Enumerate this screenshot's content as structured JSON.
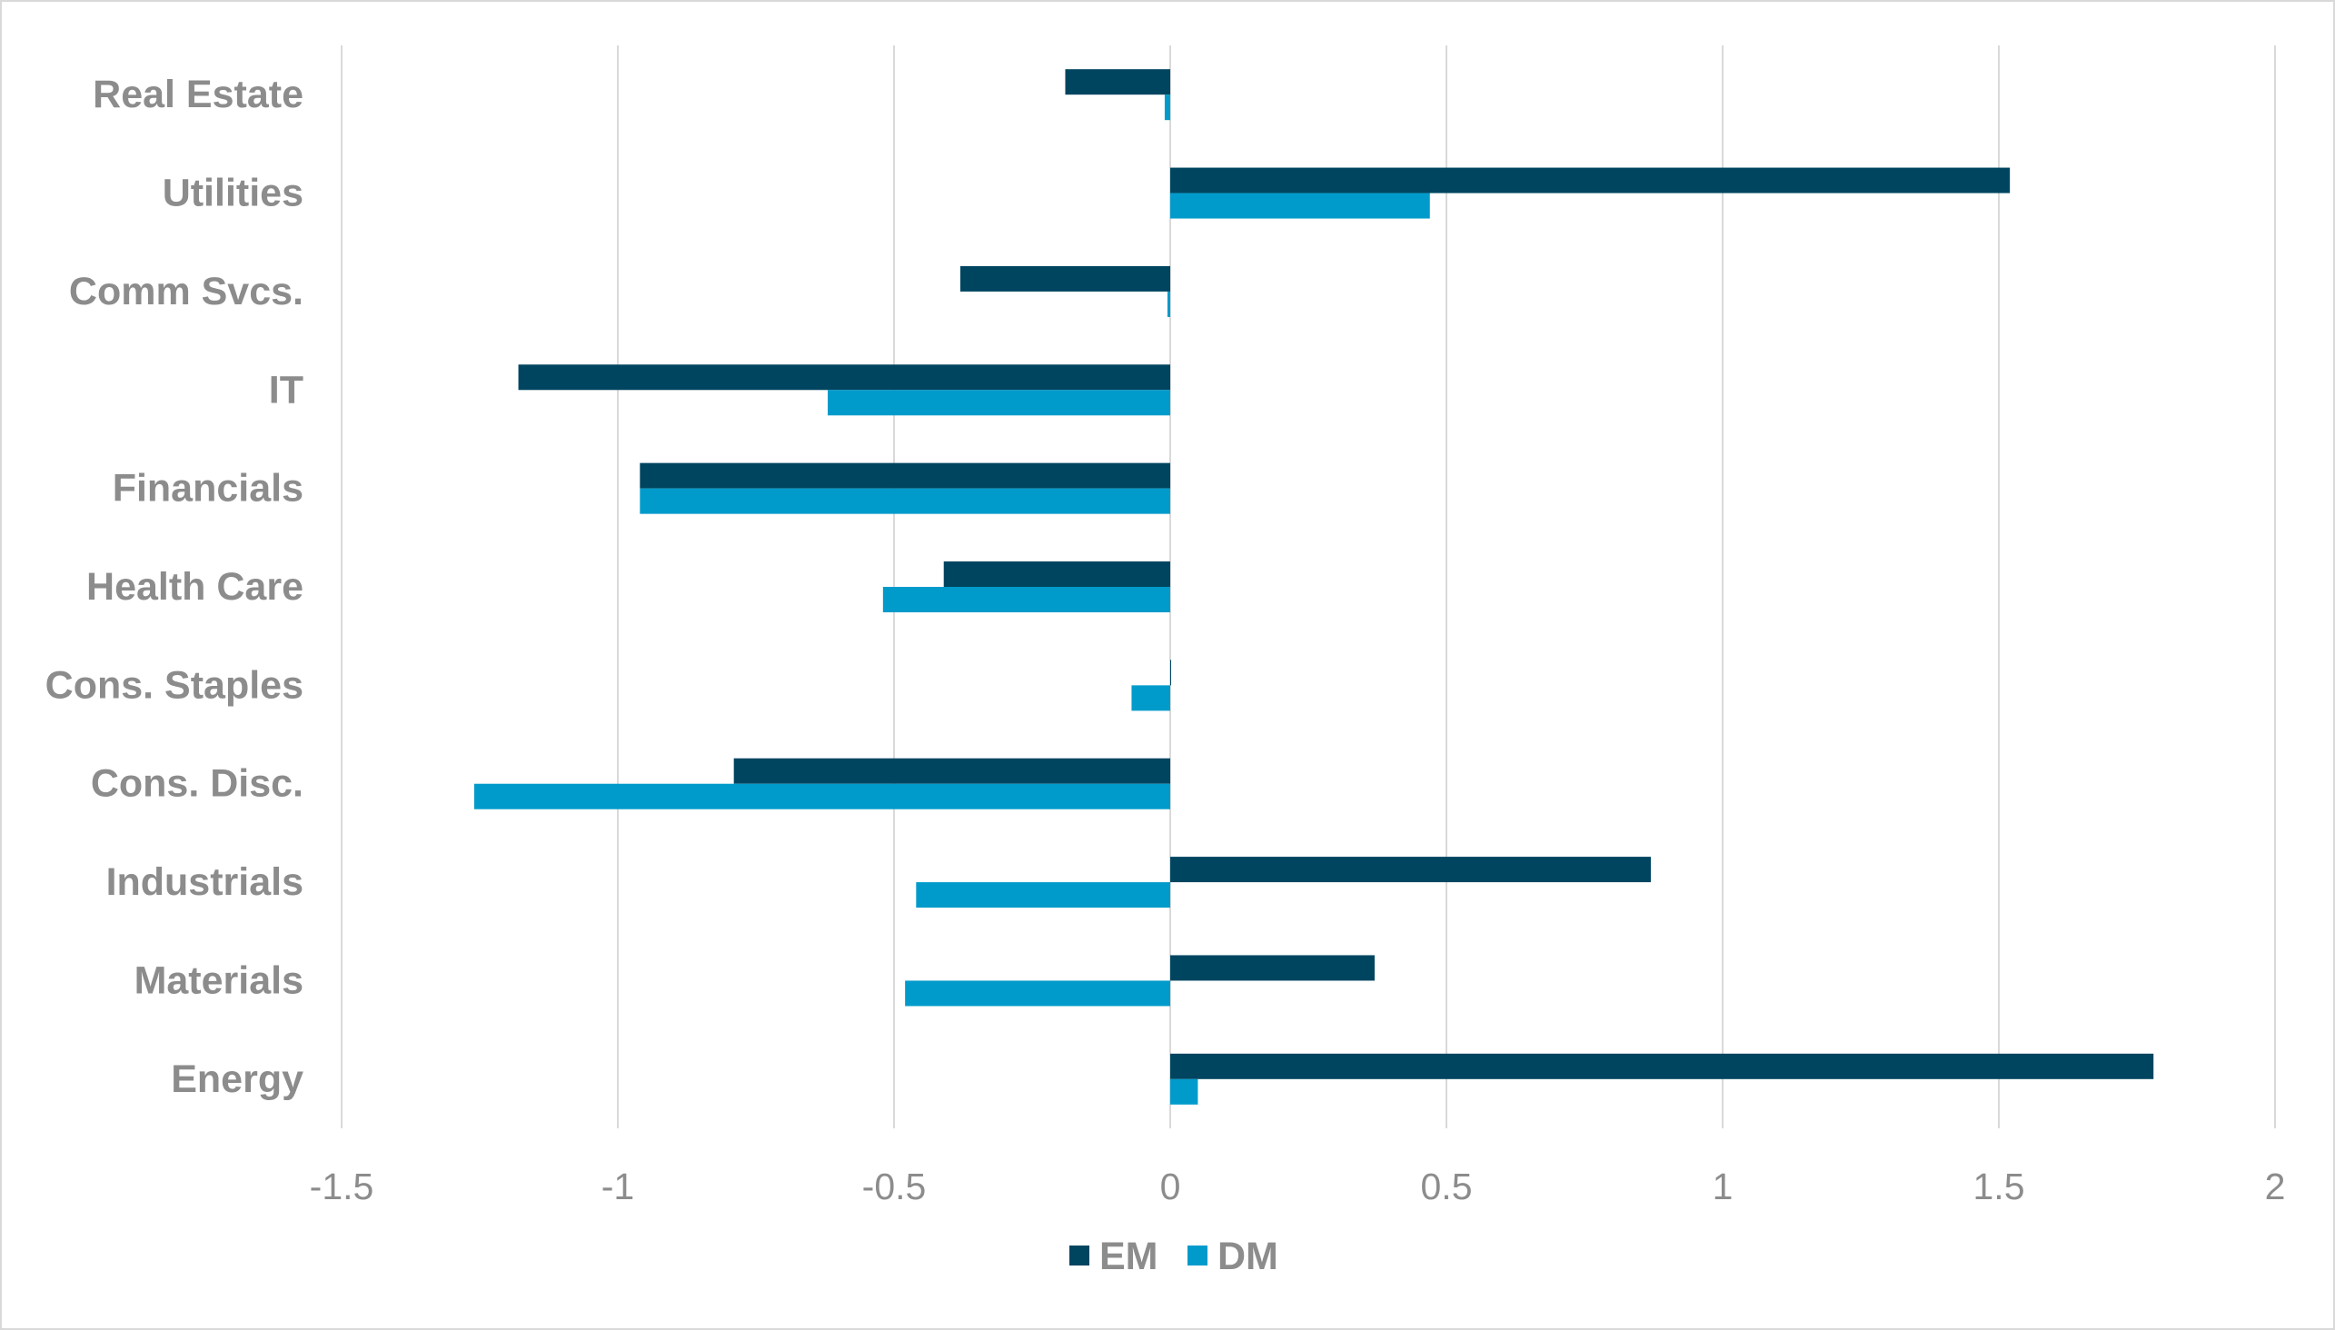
{
  "chart_data": {
    "type": "bar",
    "orientation": "horizontal",
    "title": "",
    "xlabel": "",
    "ylabel": "",
    "categories": [
      "Real Estate",
      "Utilities",
      "Comm Svcs.",
      "IT",
      "Financials",
      "Health Care",
      "Cons. Staples",
      "Cons. Disc.",
      "Industrials",
      "Materials",
      "Energy"
    ],
    "series": [
      {
        "name": "EM",
        "color": "#004560",
        "values": [
          -0.19,
          1.52,
          -0.38,
          -1.18,
          -0.96,
          -0.41,
          0.0,
          -0.79,
          0.87,
          0.37,
          1.78
        ]
      },
      {
        "name": "DM",
        "color": "#009bcb",
        "values": [
          -0.01,
          0.47,
          -0.005,
          -0.62,
          -0.96,
          -0.52,
          -0.07,
          -1.26,
          -0.46,
          -0.48,
          0.05
        ]
      }
    ],
    "xlim": [
      -1.5,
      2
    ],
    "x_ticks": [
      "-1.5",
      "-1",
      "-0.5",
      "0",
      "0.5",
      "1",
      "1.5",
      "2"
    ],
    "x_tick_values": [
      -1.5,
      -1,
      -0.5,
      0,
      0.5,
      1,
      1.5,
      2
    ],
    "grid": "vertical",
    "legend": "bottom-center"
  }
}
